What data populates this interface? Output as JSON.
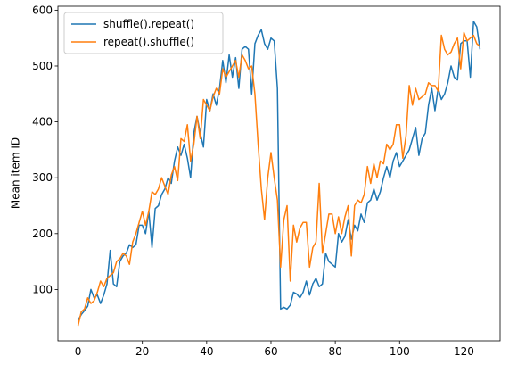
{
  "chart_data": {
    "type": "line",
    "y_label": "Mean item ID",
    "x": [
      0,
      1,
      2,
      3,
      4,
      5,
      6,
      7,
      8,
      9,
      10,
      11,
      12,
      13,
      14,
      15,
      16,
      17,
      18,
      19,
      20,
      21,
      22,
      23,
      24,
      25,
      26,
      27,
      28,
      29,
      30,
      31,
      32,
      33,
      34,
      35,
      36,
      37,
      38,
      39,
      40,
      41,
      42,
      43,
      44,
      45,
      46,
      47,
      48,
      49,
      50,
      51,
      52,
      53,
      54,
      55,
      56,
      57,
      58,
      59,
      60,
      61,
      62,
      63,
      64,
      65,
      66,
      67,
      68,
      69,
      70,
      71,
      72,
      73,
      74,
      75,
      76,
      77,
      78,
      79,
      80,
      81,
      82,
      83,
      84,
      85,
      86,
      87,
      88,
      89,
      90,
      91,
      92,
      93,
      94,
      95,
      96,
      97,
      98,
      99,
      100,
      101,
      102,
      103,
      104,
      105,
      106,
      107,
      108,
      109,
      110,
      111,
      112,
      113,
      114,
      115,
      116,
      117,
      118,
      119,
      120,
      121,
      122,
      123,
      124,
      125
    ],
    "series": [
      {
        "name": "shuffle().repeat()",
        "color": "#1f77b4",
        "values": [
          45,
          55,
          62,
          70,
          100,
          85,
          90,
          75,
          90,
          110,
          170,
          110,
          105,
          150,
          160,
          165,
          180,
          175,
          180,
          215,
          215,
          200,
          240,
          175,
          245,
          250,
          270,
          280,
          300,
          290,
          330,
          355,
          340,
          360,
          335,
          300,
          380,
          410,
          380,
          355,
          440,
          420,
          450,
          430,
          460,
          510,
          470,
          520,
          480,
          515,
          460,
          530,
          535,
          530,
          450,
          540,
          555,
          565,
          540,
          530,
          550,
          545,
          460,
          65,
          68,
          65,
          72,
          95,
          92,
          85,
          95,
          115,
          90,
          110,
          120,
          105,
          110,
          165,
          150,
          145,
          140,
          200,
          185,
          195,
          225,
          190,
          215,
          205,
          235,
          220,
          255,
          260,
          280,
          260,
          275,
          300,
          320,
          300,
          330,
          345,
          320,
          330,
          340,
          350,
          370,
          390,
          340,
          370,
          380,
          430,
          460,
          420,
          460,
          440,
          450,
          470,
          500,
          480,
          475,
          540,
          545,
          545,
          480,
          580,
          570,
          530
        ]
      },
      {
        "name": "repeat().shuffle()",
        "color": "#ff7f0e",
        "values": [
          35,
          60,
          65,
          85,
          75,
          80,
          95,
          115,
          105,
          120,
          125,
          130,
          150,
          155,
          165,
          160,
          145,
          185,
          200,
          220,
          240,
          215,
          240,
          275,
          270,
          280,
          300,
          285,
          270,
          305,
          320,
          295,
          370,
          365,
          395,
          330,
          360,
          410,
          370,
          440,
          430,
          420,
          445,
          460,
          450,
          495,
          480,
          490,
          500,
          510,
          480,
          520,
          510,
          495,
          500,
          450,
          360,
          280,
          225,
          300,
          345,
          300,
          260,
          140,
          225,
          250,
          115,
          215,
          185,
          210,
          220,
          220,
          140,
          175,
          185,
          290,
          165,
          200,
          235,
          235,
          200,
          230,
          200,
          230,
          250,
          160,
          250,
          260,
          255,
          270,
          320,
          290,
          325,
          300,
          330,
          325,
          360,
          350,
          360,
          395,
          395,
          335,
          375,
          465,
          430,
          460,
          440,
          445,
          450,
          470,
          465,
          465,
          455,
          555,
          530,
          520,
          525,
          540,
          550,
          495,
          560,
          545,
          550,
          555,
          540,
          535
        ]
      }
    ],
    "xlim": [
      -6.25,
      131.25
    ],
    "xticks": [
      0,
      20,
      40,
      60,
      80,
      100,
      120
    ],
    "ylim": [
      8,
      607
    ],
    "yticks": [
      100,
      200,
      300,
      400,
      500,
      600
    ],
    "legend": "upper left"
  }
}
